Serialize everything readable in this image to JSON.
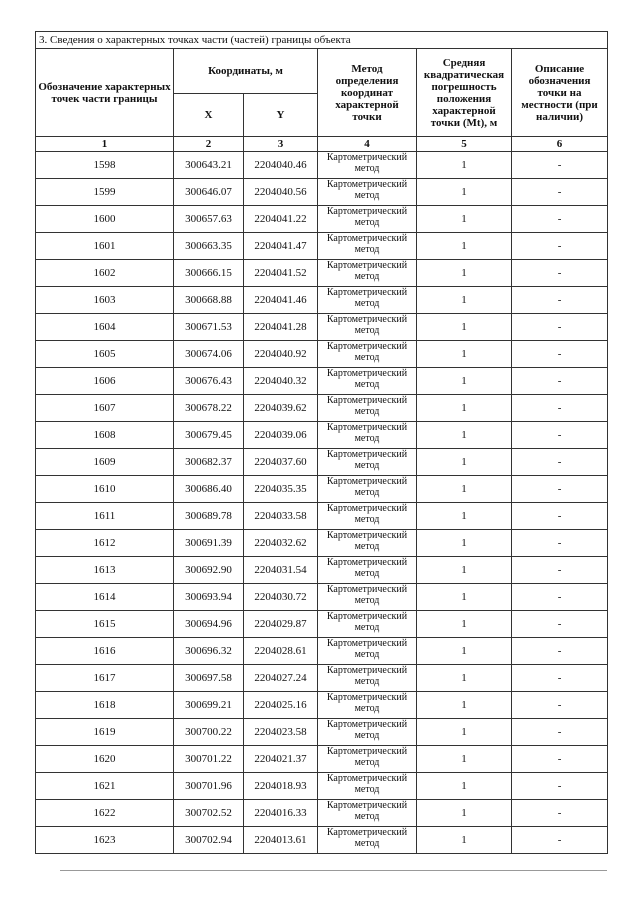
{
  "section_title": "3. Сведения  о  характерных  точках  части  (частей)  границы объекта",
  "headers": {
    "col1": "Обозначение характерных точек части границы",
    "coords": "Координаты, м",
    "x": "X",
    "y": "Y",
    "col4": "Метод определения координат характерной точки",
    "col5": "Средняя квадратическая погрешность положения характерной точки (Mt), м",
    "col6": "Описание обозначения точки на местности (при наличии)"
  },
  "column_numbers": [
    "1",
    "2",
    "3",
    "4",
    "5",
    "6"
  ],
  "rows": [
    {
      "point": "1598",
      "x": "300643.21",
      "y": "2204040.46",
      "method": "Картометрический метод",
      "mt": "1",
      "desc": "-"
    },
    {
      "point": "1599",
      "x": "300646.07",
      "y": "2204040.56",
      "method": "Картометрический метод",
      "mt": "1",
      "desc": "-"
    },
    {
      "point": "1600",
      "x": "300657.63",
      "y": "2204041.22",
      "method": "Картометрический метод",
      "mt": "1",
      "desc": "-"
    },
    {
      "point": "1601",
      "x": "300663.35",
      "y": "2204041.47",
      "method": "Картометрический метод",
      "mt": "1",
      "desc": "-"
    },
    {
      "point": "1602",
      "x": "300666.15",
      "y": "2204041.52",
      "method": "Картометрический метод",
      "mt": "1",
      "desc": "-"
    },
    {
      "point": "1603",
      "x": "300668.88",
      "y": "2204041.46",
      "method": "Картометрический метод",
      "mt": "1",
      "desc": "-"
    },
    {
      "point": "1604",
      "x": "300671.53",
      "y": "2204041.28",
      "method": "Картометрический метод",
      "mt": "1",
      "desc": "-"
    },
    {
      "point": "1605",
      "x": "300674.06",
      "y": "2204040.92",
      "method": "Картометрический метод",
      "mt": "1",
      "desc": "-"
    },
    {
      "point": "1606",
      "x": "300676.43",
      "y": "2204040.32",
      "method": "Картометрический метод",
      "mt": "1",
      "desc": "-"
    },
    {
      "point": "1607",
      "x": "300678.22",
      "y": "2204039.62",
      "method": "Картометрический метод",
      "mt": "1",
      "desc": "-"
    },
    {
      "point": "1608",
      "x": "300679.45",
      "y": "2204039.06",
      "method": "Картометрический метод",
      "mt": "1",
      "desc": "-"
    },
    {
      "point": "1609",
      "x": "300682.37",
      "y": "2204037.60",
      "method": "Картометрический метод",
      "mt": "1",
      "desc": "-"
    },
    {
      "point": "1610",
      "x": "300686.40",
      "y": "2204035.35",
      "method": "Картометрический метод",
      "mt": "1",
      "desc": "-"
    },
    {
      "point": "1611",
      "x": "300689.78",
      "y": "2204033.58",
      "method": "Картометрический метод",
      "mt": "1",
      "desc": "-"
    },
    {
      "point": "1612",
      "x": "300691.39",
      "y": "2204032.62",
      "method": "Картометрический метод",
      "mt": "1",
      "desc": "-"
    },
    {
      "point": "1613",
      "x": "300692.90",
      "y": "2204031.54",
      "method": "Картометрический метод",
      "mt": "1",
      "desc": "-"
    },
    {
      "point": "1614",
      "x": "300693.94",
      "y": "2204030.72",
      "method": "Картометрический метод",
      "mt": "1",
      "desc": "-"
    },
    {
      "point": "1615",
      "x": "300694.96",
      "y": "2204029.87",
      "method": "Картометрический метод",
      "mt": "1",
      "desc": "-"
    },
    {
      "point": "1616",
      "x": "300696.32",
      "y": "2204028.61",
      "method": "Картометрический метод",
      "mt": "1",
      "desc": "-"
    },
    {
      "point": "1617",
      "x": "300697.58",
      "y": "2204027.24",
      "method": "Картометрический метод",
      "mt": "1",
      "desc": "-"
    },
    {
      "point": "1618",
      "x": "300699.21",
      "y": "2204025.16",
      "method": "Картометрический метод",
      "mt": "1",
      "desc": "-"
    },
    {
      "point": "1619",
      "x": "300700.22",
      "y": "2204023.58",
      "method": "Картометрический метод",
      "mt": "1",
      "desc": "-"
    },
    {
      "point": "1620",
      "x": "300701.22",
      "y": "2204021.37",
      "method": "Картометрический метод",
      "mt": "1",
      "desc": "-"
    },
    {
      "point": "1621",
      "x": "300701.96",
      "y": "2204018.93",
      "method": "Картометрический метод",
      "mt": "1",
      "desc": "-"
    },
    {
      "point": "1622",
      "x": "300702.52",
      "y": "2204016.33",
      "method": "Картометрический метод",
      "mt": "1",
      "desc": "-"
    },
    {
      "point": "1623",
      "x": "300702.94",
      "y": "2204013.61",
      "method": "Картометрический метод",
      "mt": "1",
      "desc": "-"
    }
  ]
}
